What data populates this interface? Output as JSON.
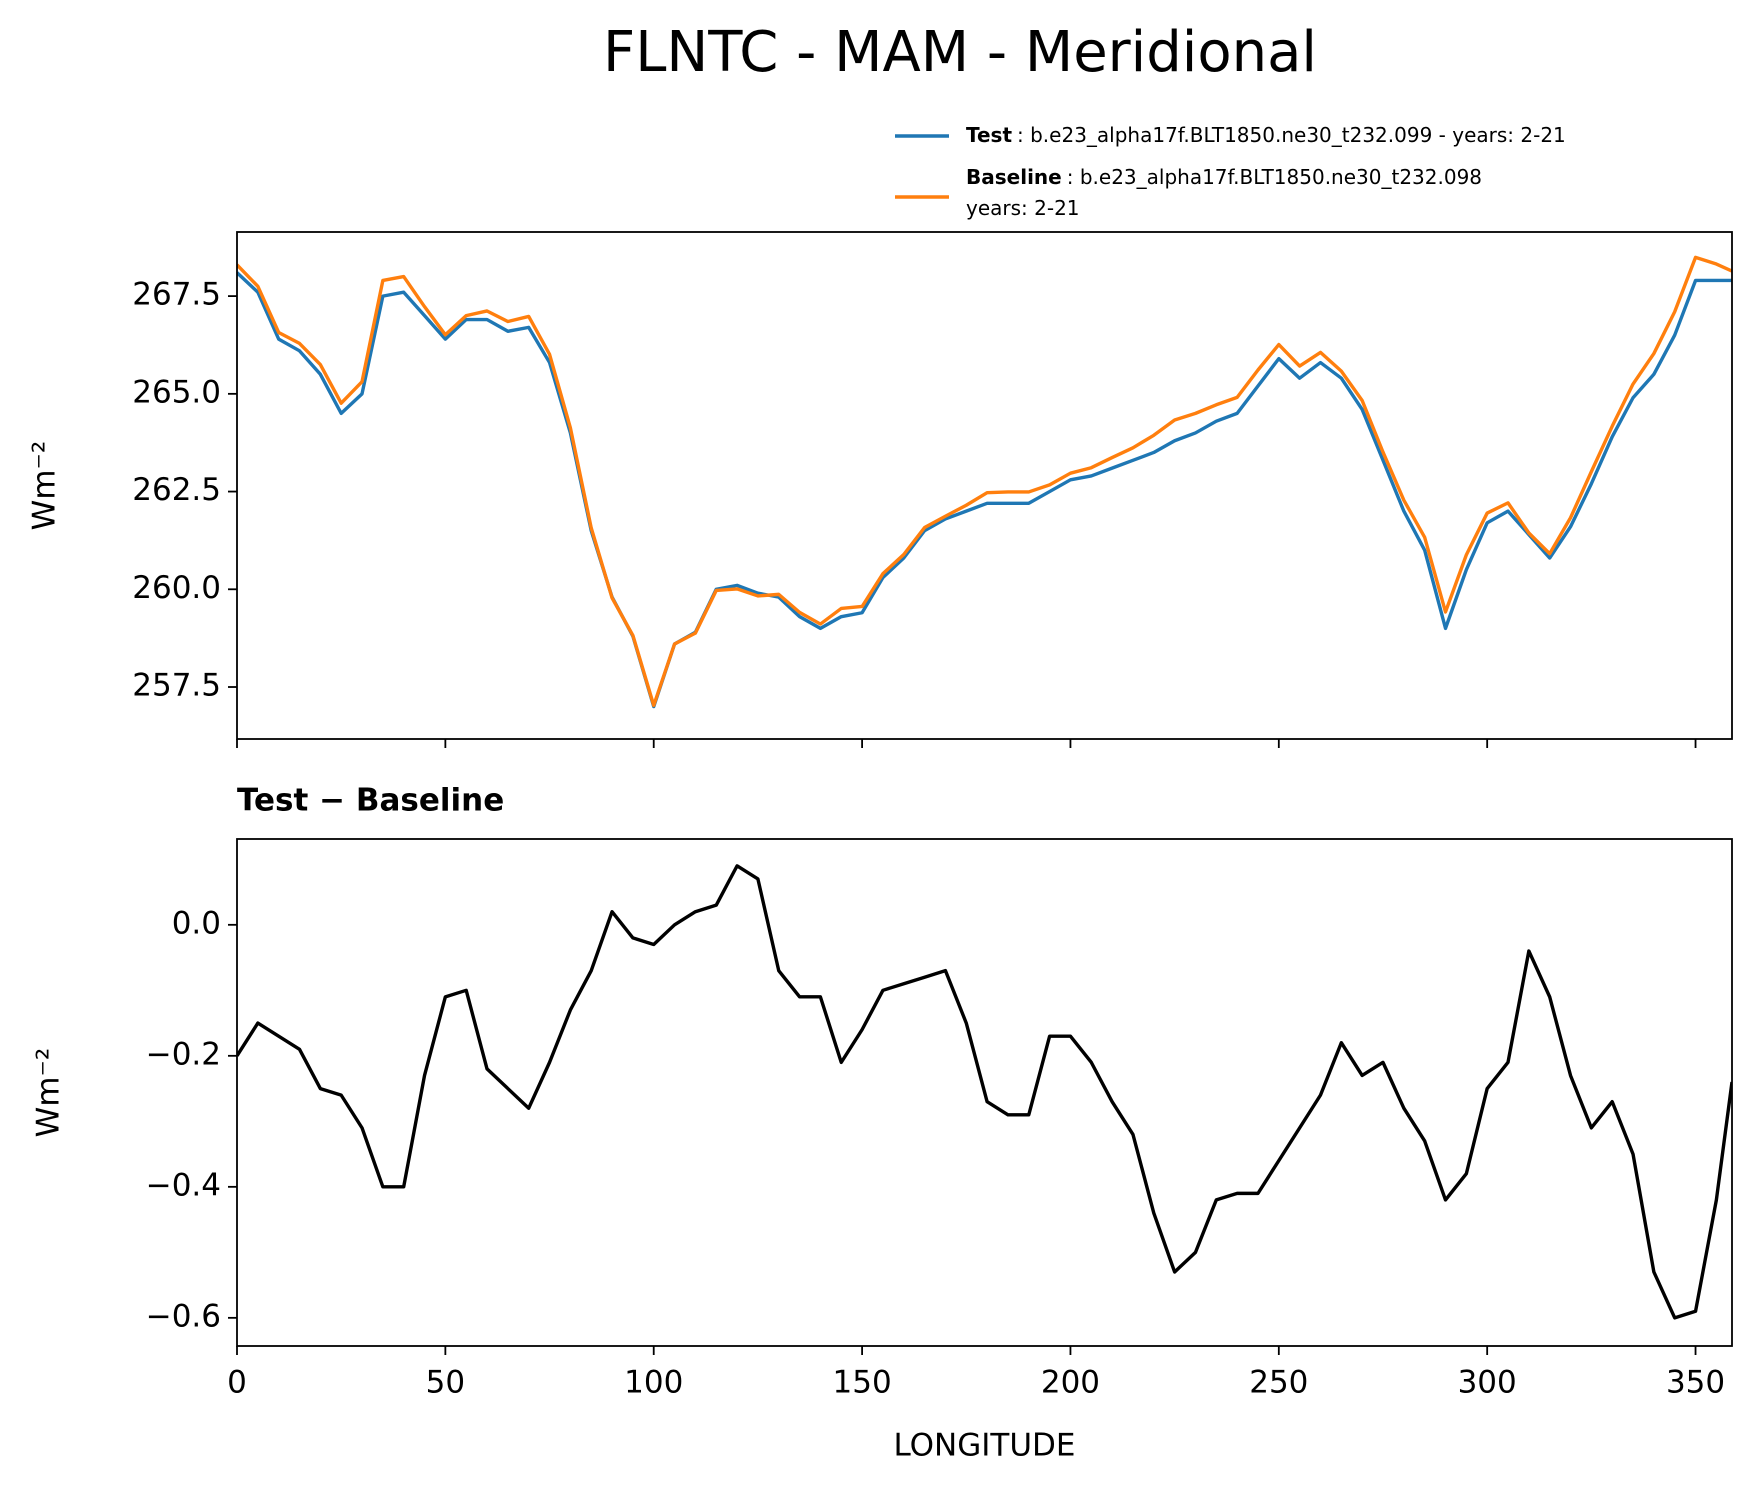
{
  "title": "FLNTC - MAM - Meridional",
  "chart_data": [
    {
      "type": "line",
      "x": [
        0,
        5,
        10,
        15,
        20,
        25,
        30,
        35,
        40,
        45,
        50,
        55,
        60,
        65,
        70,
        75,
        80,
        85,
        90,
        95,
        100,
        105,
        110,
        115,
        120,
        125,
        130,
        135,
        140,
        145,
        150,
        155,
        160,
        165,
        170,
        175,
        180,
        185,
        190,
        195,
        200,
        205,
        210,
        215,
        220,
        225,
        230,
        235,
        240,
        245,
        250,
        255,
        260,
        265,
        270,
        275,
        280,
        285,
        290,
        295,
        300,
        305,
        310,
        315,
        320,
        325,
        330,
        335,
        340,
        345,
        350,
        355,
        358.75
      ],
      "series": [
        {
          "name": "Test",
          "label": ": b.e23_alpha17f.BLT1850.ne30_t232.099 - years: 2-21",
          "color": "#1f77b4",
          "values": [
            268.1,
            267.6,
            266.4,
            266.1,
            265.5,
            264.5,
            265.0,
            267.5,
            267.6,
            267.0,
            266.4,
            266.9,
            266.9,
            266.6,
            266.7,
            265.8,
            264.0,
            261.5,
            259.8,
            258.8,
            257.0,
            258.6,
            258.9,
            260.0,
            260.1,
            259.9,
            259.8,
            259.3,
            259.0,
            259.3,
            259.4,
            260.3,
            260.8,
            261.5,
            261.8,
            262.0,
            262.2,
            262.2,
            262.2,
            262.5,
            262.8,
            262.9,
            263.1,
            263.3,
            263.5,
            263.8,
            264.0,
            264.3,
            264.5,
            265.2,
            265.9,
            265.4,
            265.8,
            265.4,
            264.6,
            263.3,
            262.0,
            261.0,
            259.0,
            260.5,
            261.7,
            262.0,
            261.4,
            260.8,
            261.6,
            262.7,
            263.9,
            264.9,
            265.5,
            266.5,
            267.9,
            267.9,
            267.9
          ]
        },
        {
          "name": "Baseline",
          "label_lines": [
            ": b.e23_alpha17f.BLT1850.ne30_t232.098",
            "years: 2-21"
          ],
          "color": "#ff7f0e",
          "values": [
            268.3,
            267.75,
            266.57,
            266.29,
            265.75,
            264.76,
            265.31,
            267.9,
            268.0,
            267.23,
            266.51,
            267.0,
            267.12,
            266.85,
            266.98,
            266.01,
            264.13,
            261.57,
            259.78,
            258.82,
            257.03,
            258.6,
            258.88,
            259.97,
            260.01,
            259.83,
            259.87,
            259.41,
            259.11,
            259.51,
            259.56,
            260.4,
            260.89,
            261.58,
            261.87,
            262.15,
            262.47,
            262.49,
            262.49,
            262.67,
            262.97,
            263.11,
            263.37,
            263.62,
            263.94,
            264.33,
            264.5,
            264.72,
            264.91,
            265.61,
            266.26,
            265.71,
            266.06,
            265.58,
            264.83,
            263.51,
            262.28,
            261.33,
            259.42,
            260.88,
            261.95,
            262.21,
            261.44,
            260.91,
            261.83,
            263.01,
            264.17,
            265.25,
            266.03,
            267.1,
            268.49,
            268.32,
            268.14
          ]
        }
      ],
      "ylabel": "Wm⁻²",
      "xlim": [
        0,
        358.75
      ],
      "xticks": [
        0,
        50,
        100,
        150,
        200,
        250,
        300,
        350
      ],
      "xticklabels": false,
      "ylim": [
        256.17,
        269.14
      ],
      "yticks": [
        257.5,
        {
          "value": 260,
          "label": "260.0"
        },
        262.5,
        {
          "value": 265,
          "label": "265.0"
        },
        267.5
      ],
      "grid": false
    },
    {
      "type": "line",
      "title": "Test − Baseline",
      "x": [
        0,
        5,
        10,
        15,
        20,
        25,
        30,
        35,
        40,
        45,
        50,
        55,
        60,
        65,
        70,
        75,
        80,
        85,
        90,
        95,
        100,
        105,
        110,
        115,
        120,
        125,
        130,
        135,
        140,
        145,
        150,
        155,
        160,
        165,
        170,
        175,
        180,
        185,
        190,
        195,
        200,
        205,
        210,
        215,
        220,
        225,
        230,
        235,
        240,
        245,
        250,
        255,
        260,
        265,
        270,
        275,
        280,
        285,
        290,
        295,
        300,
        305,
        310,
        315,
        320,
        325,
        330,
        335,
        340,
        345,
        350,
        355,
        358.75
      ],
      "series": [
        {
          "color": "#000000",
          "values": [
            -0.2,
            -0.15,
            -0.17,
            -0.19,
            -0.25,
            -0.26,
            -0.31,
            -0.4,
            -0.4,
            -0.23,
            -0.11,
            -0.1,
            -0.22,
            -0.25,
            -0.28,
            -0.21,
            -0.13,
            -0.07,
            0.02,
            -0.02,
            -0.03,
            0.0,
            0.02,
            0.03,
            0.09,
            0.07,
            -0.07,
            -0.11,
            -0.11,
            -0.21,
            -0.16,
            -0.1,
            -0.09,
            -0.08,
            -0.07,
            -0.15,
            -0.27,
            -0.29,
            -0.29,
            -0.17,
            -0.17,
            -0.21,
            -0.27,
            -0.32,
            -0.44,
            -0.53,
            -0.5,
            -0.42,
            -0.41,
            -0.41,
            -0.36,
            -0.31,
            -0.26,
            -0.18,
            -0.23,
            -0.21,
            -0.28,
            -0.33,
            -0.42,
            -0.38,
            -0.25,
            -0.21,
            -0.04,
            -0.11,
            -0.23,
            -0.31,
            -0.27,
            -0.35,
            -0.53,
            -0.6,
            -0.59,
            -0.42,
            -0.24
          ]
        }
      ],
      "xlabel": "LONGITUDE",
      "ylabel": "Wm⁻²",
      "xlim": [
        0,
        358.75
      ],
      "xticks": [
        0,
        50,
        100,
        150,
        200,
        250,
        300,
        350
      ],
      "xticklabels": true,
      "ylim": [
        -0.643,
        0.131
      ],
      "yticks": [
        {
          "value": -0.6,
          "label": "−0.6"
        },
        {
          "value": -0.4,
          "label": "−0.4"
        },
        {
          "value": -0.2,
          "label": "−0.2"
        },
        {
          "value": 0,
          "label": "0.0"
        }
      ],
      "grid": false
    }
  ]
}
